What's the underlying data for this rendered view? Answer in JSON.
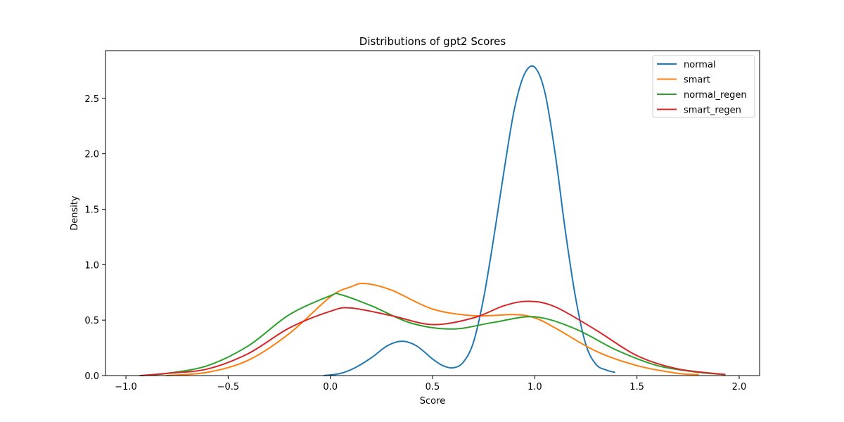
{
  "chart_data": {
    "type": "line",
    "title": "Distributions of gpt2 Scores",
    "xlabel": "Score",
    "ylabel": "Density",
    "xlim": [
      -1.1,
      2.1
    ],
    "ylim": [
      0,
      2.93
    ],
    "xticks": [
      -1.0,
      -0.5,
      0.0,
      0.5,
      1.0,
      1.5,
      2.0
    ],
    "xtick_labels": [
      "−1.0",
      "−0.5",
      "0.0",
      "0.5",
      "1.0",
      "1.5",
      "2.0"
    ],
    "yticks": [
      0.0,
      0.5,
      1.0,
      1.5,
      2.0,
      2.5
    ],
    "ytick_labels": [
      "0.0",
      "0.5",
      "1.0",
      "1.5",
      "2.0",
      "2.5"
    ],
    "grid": false,
    "legend_position": "top-right",
    "series": [
      {
        "name": "normal",
        "color": "#1f77b4",
        "x": [
          -0.03,
          0.05,
          0.12,
          0.2,
          0.28,
          0.35,
          0.42,
          0.5,
          0.55,
          0.6,
          0.65,
          0.7,
          0.75,
          0.8,
          0.85,
          0.9,
          0.95,
          1.0,
          1.05,
          1.1,
          1.15,
          1.2,
          1.25,
          1.3,
          1.35,
          1.39
        ],
        "y": [
          0.0,
          0.02,
          0.07,
          0.16,
          0.27,
          0.31,
          0.27,
          0.15,
          0.09,
          0.07,
          0.12,
          0.3,
          0.7,
          1.25,
          1.85,
          2.4,
          2.72,
          2.78,
          2.55,
          2.0,
          1.3,
          0.7,
          0.28,
          0.1,
          0.05,
          0.03
        ]
      },
      {
        "name": "smart",
        "color": "#ff7f0e",
        "x": [
          -0.8,
          -0.6,
          -0.4,
          -0.2,
          0.0,
          0.1,
          0.17,
          0.3,
          0.5,
          0.7,
          0.9,
          1.0,
          1.1,
          1.3,
          1.5,
          1.7,
          1.8
        ],
        "y": [
          0.0,
          0.03,
          0.14,
          0.38,
          0.71,
          0.8,
          0.83,
          0.77,
          0.6,
          0.54,
          0.55,
          0.52,
          0.43,
          0.22,
          0.09,
          0.02,
          0.01
        ]
      },
      {
        "name": "normal_regen",
        "color": "#2ca02c",
        "x": [
          -0.93,
          -0.8,
          -0.6,
          -0.4,
          -0.2,
          0.0,
          0.05,
          0.2,
          0.4,
          0.6,
          0.8,
          1.0,
          1.2,
          1.4,
          1.6,
          1.8,
          1.93
        ],
        "y": [
          0.0,
          0.02,
          0.09,
          0.27,
          0.55,
          0.72,
          0.73,
          0.63,
          0.47,
          0.42,
          0.48,
          0.53,
          0.42,
          0.23,
          0.09,
          0.03,
          0.01
        ]
      },
      {
        "name": "smart_regen",
        "color": "#d62728",
        "x": [
          -0.93,
          -0.8,
          -0.6,
          -0.4,
          -0.2,
          0.0,
          0.1,
          0.3,
          0.5,
          0.7,
          0.85,
          0.97,
          1.1,
          1.3,
          1.5,
          1.7,
          1.93
        ],
        "y": [
          0.0,
          0.02,
          0.06,
          0.2,
          0.43,
          0.58,
          0.61,
          0.54,
          0.46,
          0.52,
          0.63,
          0.67,
          0.62,
          0.41,
          0.18,
          0.06,
          0.01
        ]
      }
    ]
  }
}
